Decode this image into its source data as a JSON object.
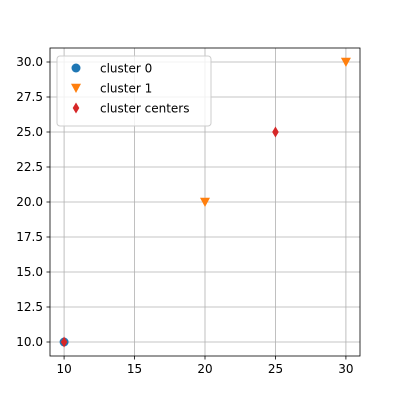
{
  "chart_data": {
    "type": "scatter",
    "title": "",
    "xlabel": "",
    "ylabel": "",
    "xlim": [
      9,
      31
    ],
    "ylim": [
      9,
      31
    ],
    "grid": true,
    "legend_position": "top-left",
    "x_ticks": [
      10,
      15,
      20,
      25,
      30
    ],
    "x_tick_labels": [
      "10",
      "15",
      "20",
      "25",
      "30"
    ],
    "y_ticks": [
      10.0,
      12.5,
      15.0,
      17.5,
      20.0,
      22.5,
      25.0,
      27.5,
      30.0
    ],
    "y_tick_labels": [
      "10.0",
      "12.5",
      "15.0",
      "17.5",
      "20.0",
      "22.5",
      "25.0",
      "27.5",
      "30.0"
    ],
    "series": [
      {
        "name": "cluster 0",
        "marker": "circle",
        "color": "#1f77b4",
        "points": [
          {
            "x": 10,
            "y": 10
          }
        ]
      },
      {
        "name": "cluster 1",
        "marker": "triangle-down",
        "color": "#ff7f0e",
        "points": [
          {
            "x": 20,
            "y": 20
          },
          {
            "x": 30,
            "y": 30
          }
        ]
      },
      {
        "name": "cluster centers",
        "marker": "thin-diamond",
        "color": "#d62728",
        "points": [
          {
            "x": 10,
            "y": 10
          },
          {
            "x": 25,
            "y": 25
          }
        ]
      }
    ]
  }
}
